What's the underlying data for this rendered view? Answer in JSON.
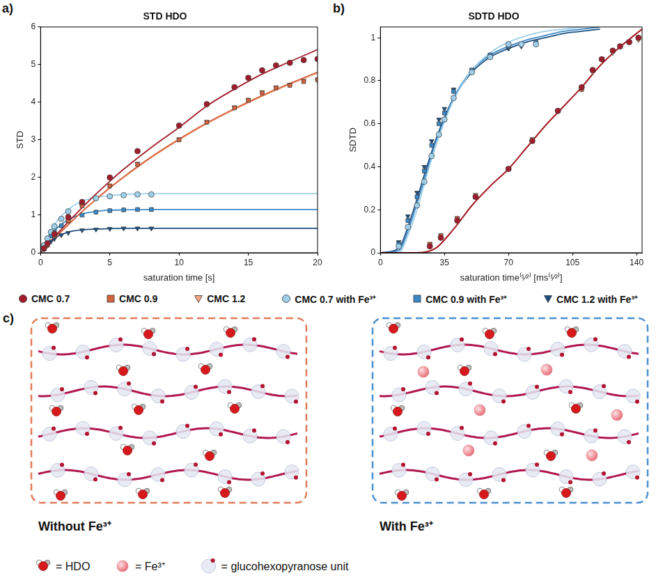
{
  "chart_data": [
    {
      "type": "scatter",
      "panel_label": "a)",
      "title": "STD HDO",
      "x_label": "saturation time [s]",
      "y_label": "STD",
      "xlim": [
        0,
        20
      ],
      "ylim": [
        0,
        6
      ],
      "xticks": [
        0,
        5,
        10,
        15,
        20
      ],
      "yticks": [
        0,
        1,
        2,
        3,
        4,
        5,
        6
      ],
      "grid": false,
      "legend": "bottom",
      "series": [
        {
          "name": "CMC 0.7",
          "color": "#a11d2b",
          "marker": "circle",
          "x": [
            0.25,
            0.5,
            1,
            2,
            3,
            5,
            7,
            10,
            12,
            14,
            15,
            16,
            17,
            18,
            19,
            20
          ],
          "values": [
            0.12,
            0.25,
            0.5,
            0.95,
            1.35,
            2.0,
            2.7,
            3.38,
            3.95,
            4.4,
            4.65,
            4.85,
            4.98,
            5.05,
            5.12,
            5.15
          ],
          "fit": {
            "x": [
              0,
              1,
              2,
              3,
              4,
              5,
              6,
              8,
              10,
              12,
              14,
              16,
              18,
              20
            ],
            "values": [
              0,
              0.42,
              0.82,
              1.2,
              1.56,
              1.9,
              2.22,
              2.8,
              3.33,
              3.9,
              4.35,
              4.75,
              5.08,
              5.4
            ]
          }
        },
        {
          "name": "CMC 0.9",
          "color": "#d4633f",
          "marker": "square",
          "x": [
            0.25,
            0.5,
            1,
            2,
            3,
            5,
            7,
            10,
            12,
            14,
            15,
            16,
            17,
            18,
            19,
            20
          ],
          "values": [
            0.1,
            0.2,
            0.45,
            0.85,
            1.25,
            1.78,
            2.35,
            3.0,
            3.47,
            3.85,
            4.05,
            4.25,
            4.38,
            4.45,
            4.55,
            4.6
          ],
          "fit": {
            "x": [
              0,
              1,
              2,
              3,
              4,
              5,
              6,
              8,
              10,
              12,
              14,
              16,
              18,
              20
            ],
            "values": [
              0,
              0.38,
              0.75,
              1.1,
              1.42,
              1.73,
              2.02,
              2.55,
              3.02,
              3.45,
              3.83,
              4.18,
              4.5,
              4.8
            ]
          }
        },
        {
          "name": "CMC 1.2",
          "color": "#f2a481",
          "marker": "triangle_down",
          "x": [
            0.25,
            0.5,
            1,
            2,
            3,
            5,
            7,
            10,
            12,
            14,
            15,
            16,
            17,
            18,
            19,
            20
          ],
          "values": [
            0.1,
            0.21,
            0.46,
            0.86,
            1.26,
            1.77,
            2.37,
            3.02,
            3.48,
            3.87,
            4.07,
            4.27,
            4.4,
            4.47,
            4.57,
            4.58
          ],
          "fit": {
            "x": [
              0,
              1,
              2,
              3,
              4,
              5,
              6,
              8,
              10,
              12,
              14,
              16,
              18,
              20
            ],
            "values": [
              0,
              0.38,
              0.74,
              1.09,
              1.41,
              1.72,
              2.0,
              2.53,
              3.0,
              3.43,
              3.81,
              4.16,
              4.48,
              4.78
            ]
          }
        },
        {
          "name": "CMC 0.7 with Fe³⁺",
          "color": "#9fd0ea",
          "marker": "circle",
          "x": [
            0.25,
            0.5,
            0.75,
            1,
            1.5,
            2,
            3,
            4,
            5,
            6,
            7,
            8
          ],
          "values": [
            0.2,
            0.38,
            0.55,
            0.7,
            0.9,
            1.1,
            1.3,
            1.45,
            1.5,
            1.53,
            1.55,
            1.55
          ],
          "fit": {
            "x": [
              0,
              1,
              2,
              3,
              4,
              5,
              6,
              8,
              10,
              12,
              14,
              16,
              18,
              20
            ],
            "values": [
              0,
              0.75,
              1.15,
              1.37,
              1.47,
              1.52,
              1.55,
              1.57,
              1.57,
              1.57,
              1.57,
              1.57,
              1.57,
              1.57
            ]
          }
        },
        {
          "name": "CMC 0.9 with Fe³⁺",
          "color": "#3b88c6",
          "marker": "square",
          "x": [
            0.25,
            0.5,
            0.75,
            1,
            1.5,
            2,
            3,
            4,
            5,
            6,
            7,
            8
          ],
          "values": [
            0.15,
            0.3,
            0.45,
            0.55,
            0.72,
            0.85,
            1.0,
            1.08,
            1.12,
            1.14,
            1.15,
            1.15
          ],
          "fit": {
            "x": [
              0,
              1,
              2,
              3,
              4,
              5,
              6,
              8,
              10,
              12,
              14,
              16,
              18,
              20
            ],
            "values": [
              0,
              0.58,
              0.88,
              1.03,
              1.1,
              1.13,
              1.14,
              1.15,
              1.15,
              1.15,
              1.15,
              1.15,
              1.15,
              1.15
            ]
          }
        },
        {
          "name": "CMC 1.2 with Fe³⁺",
          "color": "#1d4f80",
          "marker": "triangle_down",
          "x": [
            0.25,
            0.5,
            0.75,
            1,
            1.5,
            2,
            3,
            4,
            5,
            6,
            7,
            8
          ],
          "values": [
            0.1,
            0.2,
            0.3,
            0.37,
            0.47,
            0.53,
            0.6,
            0.62,
            0.64,
            0.65,
            0.65,
            0.65
          ],
          "fit": {
            "x": [
              0,
              1,
              2,
              3,
              4,
              5,
              6,
              8,
              10,
              12,
              14,
              16,
              18,
              20
            ],
            "values": [
              0,
              0.38,
              0.55,
              0.61,
              0.63,
              0.64,
              0.65,
              0.65,
              0.65,
              0.65,
              0.65,
              0.65,
              0.65,
              0.65
            ]
          }
        }
      ]
    },
    {
      "type": "scatter",
      "panel_label": "b)",
      "title": "SDTD HDO",
      "x_label": "saturation time⁽¹⁄²⁾ [ms⁽¹⁄²⁾]",
      "y_label": "SDTD",
      "xlim": [
        0,
        143
      ],
      "ylim": [
        0,
        1.05
      ],
      "xticks": [
        0,
        35,
        70,
        105,
        140
      ],
      "yticks": [
        0,
        0.2,
        0.4,
        0.6,
        0.8,
        1
      ],
      "grid": false,
      "series": [
        {
          "name": "CMC 0.7",
          "color": "#a11d2b",
          "marker": "circle",
          "x": [
            27,
            33,
            42,
            52,
            70,
            83,
            97,
            110,
            116,
            121,
            127,
            131,
            136,
            141
          ],
          "values": [
            0.03,
            0.07,
            0.15,
            0.26,
            0.39,
            0.52,
            0.66,
            0.77,
            0.85,
            0.9,
            0.94,
            0.96,
            0.98,
            1.0
          ],
          "fit": {
            "x": [
              0,
              10,
              20,
              30,
              40,
              50,
              60,
              70,
              80,
              90,
              100,
              110,
              120,
              130,
              140,
              143
            ],
            "values": [
              0,
              0,
              0,
              0.02,
              0.11,
              0.22,
              0.31,
              0.39,
              0.49,
              0.59,
              0.68,
              0.77,
              0.87,
              0.95,
              1.02,
              1.04
            ]
          }
        },
        {
          "name": "CMC 0.9",
          "color": "#d4633f",
          "marker": "square",
          "x": [
            27,
            33,
            42,
            52,
            70,
            83,
            97,
            110,
            116,
            121,
            127,
            131,
            136,
            141
          ],
          "values": [
            0.04,
            0.08,
            0.16,
            0.26,
            0.39,
            0.52,
            0.66,
            0.76,
            0.85,
            0.9,
            0.94,
            0.96,
            0.98,
            1.0
          ],
          "fit": {
            "x": [
              0,
              10,
              20,
              30,
              40,
              50,
              60,
              70,
              80,
              90,
              100,
              110,
              120,
              130,
              140,
              143
            ],
            "values": [
              0,
              0,
              0,
              0.02,
              0.11,
              0.22,
              0.31,
              0.39,
              0.49,
              0.59,
              0.68,
              0.77,
              0.87,
              0.95,
              1.02,
              1.04
            ]
          }
        },
        {
          "name": "CMC 1.2",
          "color": "#f2a481",
          "marker": "triangle_down",
          "x": [
            27,
            33,
            42,
            52,
            70,
            83,
            97,
            110,
            116,
            121,
            127,
            131,
            136,
            141
          ],
          "values": [
            0.04,
            0.08,
            0.16,
            0.27,
            0.39,
            0.53,
            0.66,
            0.76,
            0.84,
            0.9,
            0.93,
            0.96,
            0.98,
            0.99
          ],
          "fit": {
            "x": [
              0,
              10,
              20,
              30,
              40,
              50,
              60,
              70,
              80,
              90,
              100,
              110,
              120,
              130,
              140,
              143
            ],
            "values": [
              0,
              0,
              0,
              0.02,
              0.11,
              0.22,
              0.31,
              0.39,
              0.49,
              0.59,
              0.68,
              0.77,
              0.87,
              0.95,
              1.02,
              1.04
            ]
          }
        },
        {
          "name": "CMC 0.7 with Fe³⁺",
          "color": "#9fd0ea",
          "marker": "circle",
          "x": [
            10,
            15,
            20,
            24,
            28,
            32,
            35,
            40,
            50,
            60,
            70,
            77,
            85
          ],
          "values": [
            0.03,
            0.12,
            0.22,
            0.33,
            0.45,
            0.55,
            0.62,
            0.72,
            0.84,
            0.91,
            0.97,
            0.97,
            0.97
          ],
          "fit": {
            "x": [
              0,
              10,
              15,
              20,
              25,
              30,
              35,
              40,
              50,
              60,
              70,
              80,
              90,
              100,
              110,
              120
            ],
            "values": [
              0,
              0,
              0.08,
              0.2,
              0.35,
              0.49,
              0.61,
              0.71,
              0.85,
              0.93,
              0.98,
              1.01,
              1.03,
              1.04,
              1.05,
              1.06
            ]
          }
        },
        {
          "name": "CMC 0.9 with Fe³⁺",
          "color": "#3b88c6",
          "marker": "square",
          "x": [
            10,
            15,
            20,
            24,
            28,
            32,
            35,
            40,
            50,
            60,
            70,
            77,
            85
          ],
          "values": [
            0.04,
            0.15,
            0.26,
            0.38,
            0.5,
            0.6,
            0.65,
            0.75,
            0.85,
            0.92,
            0.96,
            0.97,
            0.98
          ],
          "fit": {
            "x": [
              0,
              10,
              15,
              20,
              25,
              30,
              35,
              40,
              50,
              60,
              70,
              80,
              90,
              100,
              110,
              120
            ],
            "values": [
              0,
              0.01,
              0.1,
              0.23,
              0.37,
              0.51,
              0.62,
              0.72,
              0.85,
              0.92,
              0.96,
              0.99,
              1.01,
              1.03,
              1.04,
              1.05
            ]
          }
        },
        {
          "name": "CMC 1.2 with Fe³⁺",
          "color": "#1d4f80",
          "marker": "triangle_down",
          "x": [
            10,
            15,
            20,
            24,
            28,
            32,
            35,
            40,
            50,
            60,
            70,
            77,
            85
          ],
          "values": [
            0.05,
            0.17,
            0.28,
            0.4,
            0.52,
            0.62,
            0.67,
            0.76,
            0.85,
            0.92,
            0.95,
            0.96,
            0.97
          ],
          "fit": {
            "x": [
              0,
              10,
              15,
              20,
              25,
              30,
              35,
              40,
              50,
              60,
              70,
              80,
              90,
              100,
              110,
              120
            ],
            "values": [
              0,
              0.02,
              0.12,
              0.25,
              0.39,
              0.52,
              0.63,
              0.72,
              0.84,
              0.91,
              0.95,
              0.98,
              1.0,
              1.02,
              1.03,
              1.04
            ]
          }
        }
      ]
    }
  ],
  "diagram": {
    "panel_label": "c)",
    "boxes": [
      {
        "label": "Without Fe³⁺",
        "contains": [
          "HDO",
          "glucohexopyranose unit"
        ]
      },
      {
        "label": "With Fe³⁺",
        "contains": [
          "HDO",
          "Fe³⁺",
          "glucohexopyranose unit"
        ]
      }
    ],
    "key": [
      {
        "item": "HDO",
        "label": "= HDO"
      },
      {
        "item": "Fe³⁺",
        "label": "= Fe³⁺"
      },
      {
        "item": "glucohexopyranose unit",
        "label": "= glucohexopyranose unit"
      }
    ]
  }
}
